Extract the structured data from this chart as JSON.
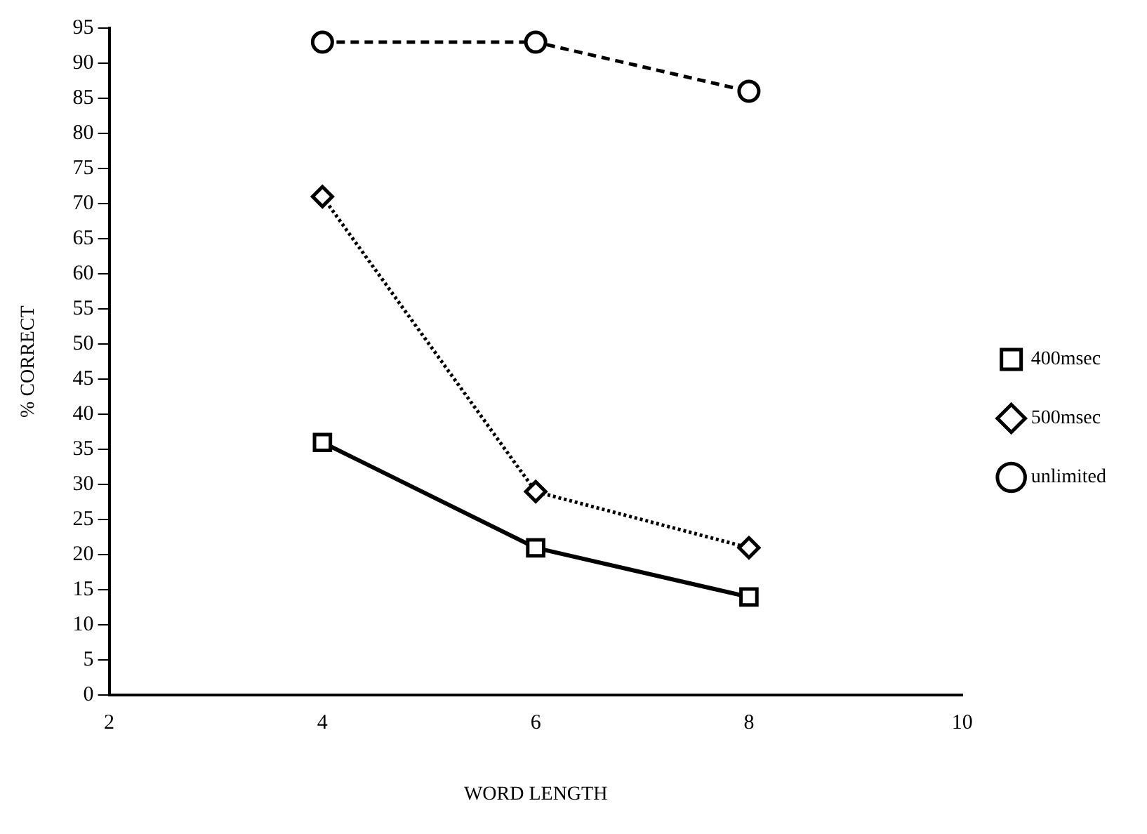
{
  "chart_data": {
    "type": "line",
    "xlabel": "WORD LENGTH",
    "ylabel": "% CORRECT",
    "x": [
      4,
      6,
      8
    ],
    "series": [
      {
        "name": "400msec",
        "color": "#000000",
        "values": [
          36,
          21,
          14
        ],
        "marker": "square",
        "line_style": "solid"
      },
      {
        "name": "500msec",
        "color": "#000000",
        "values": [
          71,
          29,
          21
        ],
        "marker": "diamond",
        "line_style": "dotted"
      },
      {
        "name": "unlimited",
        "color": "#000000",
        "values": [
          93,
          93,
          86
        ],
        "marker": "circle",
        "line_style": "dashed"
      }
    ],
    "xlim": [
      2,
      10
    ],
    "xticks": [
      2,
      4,
      6,
      8,
      10
    ],
    "ylim": [
      0,
      95
    ],
    "yticks": [
      0,
      5,
      10,
      15,
      20,
      25,
      30,
      35,
      40,
      45,
      50,
      55,
      60,
      65,
      70,
      75,
      80,
      85,
      90,
      95
    ],
    "grid": false,
    "legend": "right"
  }
}
